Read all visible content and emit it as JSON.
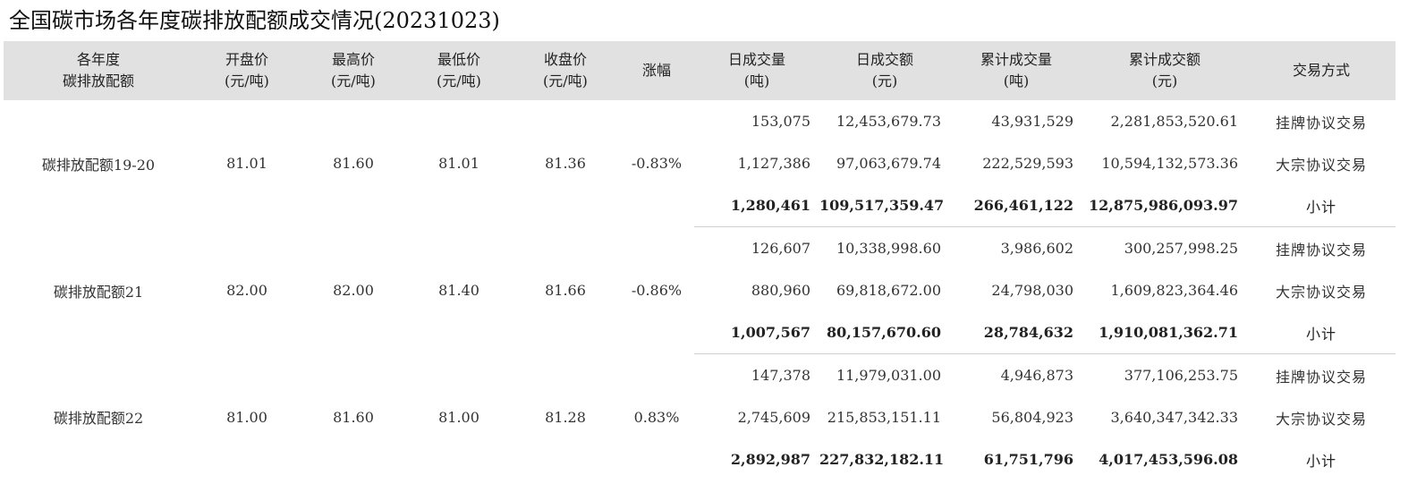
{
  "title": "全国碳市场各年度碳排放配额成交情况(20231023)",
  "headers": {
    "year": [
      "各年度",
      "碳排放配额"
    ],
    "open": [
      "开盘价",
      "(元/吨)"
    ],
    "high": [
      "最高价",
      "(元/吨)"
    ],
    "low": [
      "最低价",
      "(元/吨)"
    ],
    "close": [
      "收盘价",
      "(元/吨)"
    ],
    "change": [
      "涨幅"
    ],
    "daily_volume": [
      "日成交量",
      "(吨)"
    ],
    "daily_amount": [
      "日成交额",
      "(元)"
    ],
    "cum_volume": [
      "累计成交量",
      "(吨)"
    ],
    "cum_amount": [
      "累计成交额",
      "(元)"
    ],
    "mode": [
      "交易方式"
    ]
  },
  "groups": [
    {
      "name": "碳排放配额19-20",
      "open": "81.01",
      "high": "81.60",
      "low": "81.01",
      "close": "81.36",
      "change": "-0.83%",
      "rows": [
        {
          "daily_volume": "153,075",
          "daily_amount": "12,453,679.73",
          "cum_volume": "43,931,529",
          "cum_amount": "2,281,853,520.61",
          "mode": "挂牌协议交易"
        },
        {
          "daily_volume": "1,127,386",
          "daily_amount": "97,063,679.74",
          "cum_volume": "222,529,593",
          "cum_amount": "10,594,132,573.36",
          "mode": "大宗协议交易"
        },
        {
          "daily_volume": "1,280,461",
          "daily_amount": "109,517,359.47",
          "cum_volume": "266,461,122",
          "cum_amount": "12,875,986,093.97",
          "mode": "小计"
        }
      ]
    },
    {
      "name": "碳排放配额21",
      "open": "82.00",
      "high": "82.00",
      "low": "81.40",
      "close": "81.66",
      "change": "-0.86%",
      "rows": [
        {
          "daily_volume": "126,607",
          "daily_amount": "10,338,998.60",
          "cum_volume": "3,986,602",
          "cum_amount": "300,257,998.25",
          "mode": "挂牌协议交易"
        },
        {
          "daily_volume": "880,960",
          "daily_amount": "69,818,672.00",
          "cum_volume": "24,798,030",
          "cum_amount": "1,609,823,364.46",
          "mode": "大宗协议交易"
        },
        {
          "daily_volume": "1,007,567",
          "daily_amount": "80,157,670.60",
          "cum_volume": "28,784,632",
          "cum_amount": "1,910,081,362.71",
          "mode": "小计"
        }
      ]
    },
    {
      "name": "碳排放配额22",
      "open": "81.00",
      "high": "81.60",
      "low": "81.00",
      "close": "81.28",
      "change": "0.83%",
      "rows": [
        {
          "daily_volume": "147,378",
          "daily_amount": "11,979,031.00",
          "cum_volume": "4,946,873",
          "cum_amount": "377,106,253.75",
          "mode": "挂牌协议交易"
        },
        {
          "daily_volume": "2,745,609",
          "daily_amount": "215,853,151.11",
          "cum_volume": "56,804,923",
          "cum_amount": "3,640,347,342.33",
          "mode": "大宗协议交易"
        },
        {
          "daily_volume": "2,892,987",
          "daily_amount": "227,832,182.11",
          "cum_volume": "61,751,796",
          "cum_amount": "4,017,453,596.08",
          "mode": "小计"
        }
      ]
    }
  ]
}
